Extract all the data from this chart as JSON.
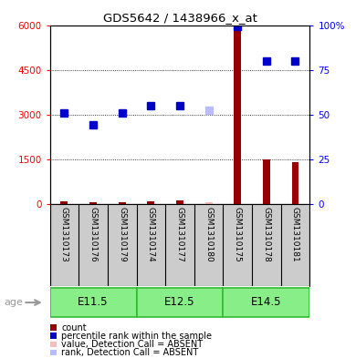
{
  "title": "GDS5642 / 1438966_x_at",
  "samples": [
    "GSM1310173",
    "GSM1310176",
    "GSM1310179",
    "GSM1310174",
    "GSM1310177",
    "GSM1310180",
    "GSM1310175",
    "GSM1310178",
    "GSM1310181"
  ],
  "age_groups": [
    {
      "label": "E11.5",
      "start": 0,
      "end": 3
    },
    {
      "label": "E12.5",
      "start": 3,
      "end": 6
    },
    {
      "label": "E14.5",
      "start": 6,
      "end": 9
    }
  ],
  "count_values": [
    80,
    70,
    65,
    100,
    130,
    50,
    5900,
    1500,
    1400
  ],
  "rank_values": [
    3050,
    2650,
    3050,
    3300,
    3300,
    3150,
    5950,
    4800,
    4800
  ],
  "absent_idx": 5,
  "ylim_left": [
    0,
    6000
  ],
  "ylim_right": [
    0,
    100
  ],
  "yticks_left": [
    0,
    1500,
    3000,
    4500,
    6000
  ],
  "ytick_labels_left": [
    "0",
    "1500",
    "3000",
    "4500",
    "6000"
  ],
  "yticks_right": [
    0,
    25,
    50,
    75,
    100
  ],
  "ytick_labels_right": [
    "0",
    "25",
    "50",
    "75",
    "100%"
  ],
  "count_color": "#990000",
  "rank_color": "#0000cc",
  "absent_count_color": "#ffbbbb",
  "absent_rank_color": "#bbbbff",
  "sample_bg_color": "#cccccc",
  "age_bg_color": "#88ee88",
  "age_border_color": "#33bb33",
  "legend_items": [
    {
      "color": "#990000",
      "label": "count"
    },
    {
      "color": "#0000cc",
      "label": "percentile rank within the sample"
    },
    {
      "color": "#ffbbbb",
      "label": "value, Detection Call = ABSENT"
    },
    {
      "color": "#bbbbff",
      "label": "rank, Detection Call = ABSENT"
    }
  ],
  "age_label": "age"
}
